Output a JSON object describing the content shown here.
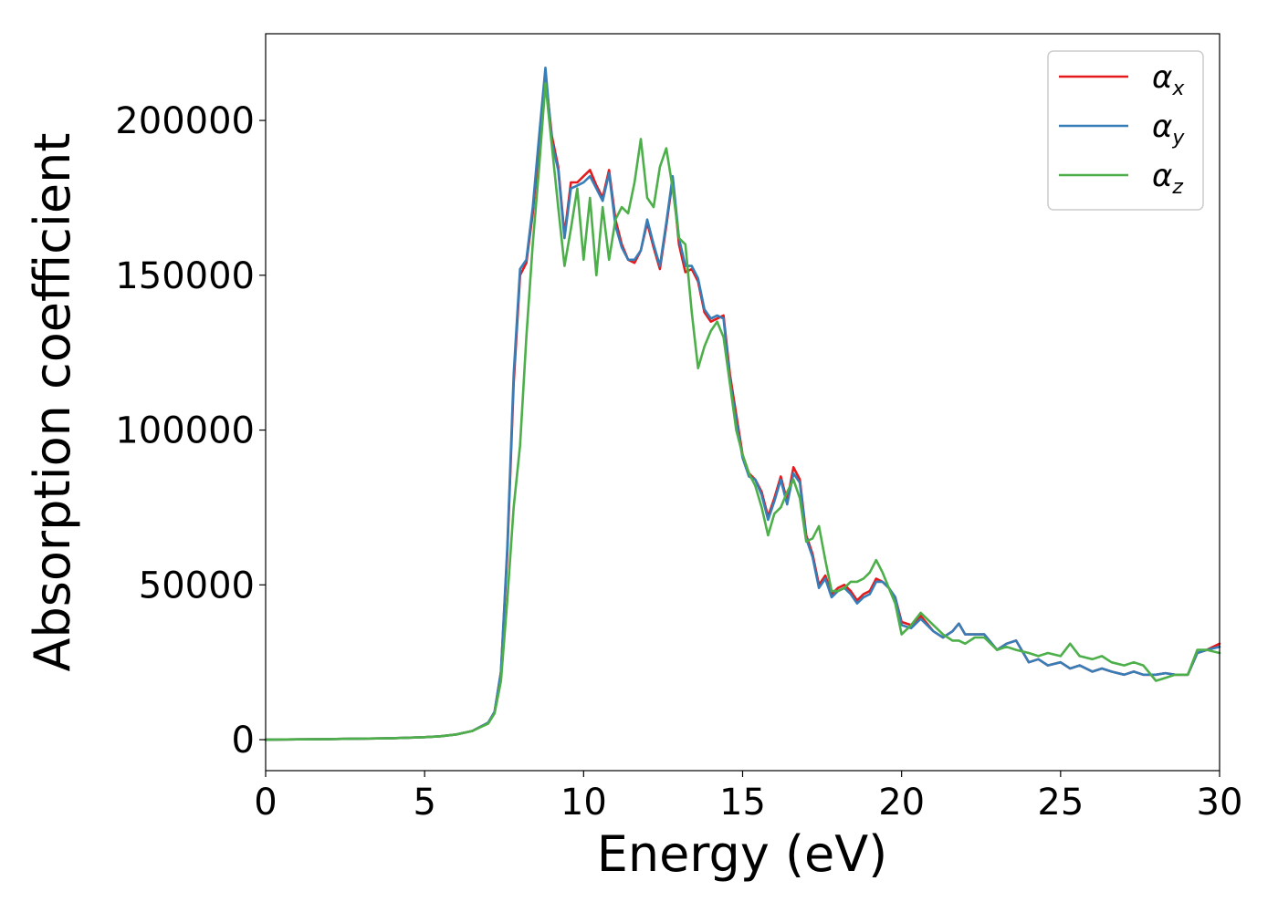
{
  "chart_data": {
    "type": "line",
    "title": "",
    "xlabel": "Energy (eV)",
    "ylabel": "Absorption coefficient",
    "xlim": [
      0,
      30
    ],
    "ylim": [
      -10000,
      228000
    ],
    "xticks": [
      0,
      5,
      10,
      15,
      20,
      25,
      30
    ],
    "xtick_labels": [
      "0",
      "5",
      "10",
      "15",
      "20",
      "25",
      "30"
    ],
    "yticks": [
      0,
      50000,
      100000,
      150000,
      200000
    ],
    "ytick_labels": [
      "0",
      "50000",
      "100000",
      "150000",
      "200000"
    ],
    "grid": false,
    "legend_position": "top-right",
    "series": [
      {
        "name": "αx",
        "legend_symbol": "α",
        "legend_subscript": "x",
        "color": "#e41a1c",
        "x": [
          0,
          1,
          2,
          3,
          4,
          5,
          5.5,
          6,
          6.5,
          7,
          7.2,
          7.4,
          7.6,
          7.8,
          8.0,
          8.2,
          8.4,
          8.6,
          8.8,
          9.0,
          9.2,
          9.4,
          9.6,
          9.8,
          10.0,
          10.2,
          10.4,
          10.6,
          10.8,
          11.0,
          11.2,
          11.4,
          11.6,
          11.8,
          12.0,
          12.2,
          12.4,
          12.6,
          12.8,
          13.0,
          13.2,
          13.4,
          13.6,
          13.8,
          14.0,
          14.2,
          14.4,
          14.6,
          14.8,
          15.0,
          15.2,
          15.4,
          15.6,
          15.8,
          16.0,
          16.2,
          16.4,
          16.6,
          16.8,
          17.0,
          17.2,
          17.4,
          17.6,
          17.8,
          18.0,
          18.2,
          18.4,
          18.6,
          18.8,
          19.0,
          19.2,
          19.4,
          19.6,
          19.8,
          20.0,
          20.3,
          20.6,
          21.0,
          21.3,
          21.6,
          21.8,
          22.0,
          22.3,
          22.6,
          23.0,
          23.3,
          23.6,
          24.0,
          24.3,
          24.6,
          25.0,
          25.3,
          25.6,
          26.0,
          26.3,
          26.6,
          27.0,
          27.3,
          27.6,
          28.0,
          28.3,
          28.6,
          29.0,
          29.3,
          29.6,
          30.0
        ],
        "y": [
          0,
          100,
          200,
          350,
          500,
          800,
          1100,
          1700,
          2800,
          5500,
          9000,
          22000,
          60000,
          115000,
          150000,
          154000,
          170000,
          192000,
          215000,
          195000,
          185000,
          163000,
          180000,
          180000,
          182000,
          184000,
          179000,
          175000,
          184000,
          168000,
          160000,
          155000,
          154000,
          158000,
          167000,
          159000,
          152000,
          166000,
          181000,
          160000,
          151000,
          152000,
          148000,
          138000,
          135000,
          136000,
          137000,
          118000,
          105000,
          92000,
          86000,
          84000,
          80000,
          72000,
          78000,
          85000,
          77000,
          88000,
          84000,
          66000,
          60000,
          50000,
          53000,
          47000,
          49000,
          50000,
          48000,
          45000,
          47000,
          48000,
          52000,
          51000,
          49000,
          46000,
          38000,
          37000,
          40000,
          35000,
          33000,
          35000,
          37500,
          34000,
          34000,
          34000,
          29000,
          31000,
          32000,
          25000,
          26000,
          24000,
          25000,
          23000,
          24000,
          22000,
          23000,
          22000,
          21000,
          22000,
          21000,
          21000,
          21500,
          21000,
          21000,
          28000,
          29000,
          31000
        ]
      },
      {
        "name": "αy",
        "legend_symbol": "α",
        "legend_subscript": "y",
        "color": "#377eb8",
        "x": [
          0,
          1,
          2,
          3,
          4,
          5,
          5.5,
          6,
          6.5,
          7,
          7.2,
          7.4,
          7.6,
          7.8,
          8.0,
          8.2,
          8.4,
          8.6,
          8.8,
          9.0,
          9.2,
          9.4,
          9.6,
          9.8,
          10.0,
          10.2,
          10.4,
          10.6,
          10.8,
          11.0,
          11.2,
          11.4,
          11.6,
          11.8,
          12.0,
          12.2,
          12.4,
          12.6,
          12.8,
          13.0,
          13.2,
          13.4,
          13.6,
          13.8,
          14.0,
          14.2,
          14.4,
          14.6,
          14.8,
          15.0,
          15.2,
          15.4,
          15.6,
          15.8,
          16.0,
          16.2,
          16.4,
          16.6,
          16.8,
          17.0,
          17.2,
          17.4,
          17.6,
          17.8,
          18.0,
          18.2,
          18.4,
          18.6,
          18.8,
          19.0,
          19.2,
          19.4,
          19.6,
          19.8,
          20.0,
          20.3,
          20.6,
          21.0,
          21.3,
          21.6,
          21.8,
          22.0,
          22.3,
          22.6,
          23.0,
          23.3,
          23.6,
          24.0,
          24.3,
          24.6,
          25.0,
          25.3,
          25.6,
          26.0,
          26.3,
          26.6,
          27.0,
          27.3,
          27.6,
          28.0,
          28.3,
          28.6,
          29.0,
          29.3,
          29.6,
          30.0
        ],
        "y": [
          0,
          100,
          200,
          350,
          500,
          800,
          1100,
          1700,
          2800,
          5500,
          9000,
          22000,
          62000,
          118000,
          152000,
          155000,
          172000,
          195000,
          217000,
          193000,
          184000,
          162000,
          178000,
          179000,
          180000,
          182000,
          178000,
          174000,
          183000,
          166000,
          159000,
          155000,
          155000,
          158000,
          168000,
          160000,
          153000,
          167000,
          182000,
          162000,
          153000,
          153000,
          149000,
          139000,
          136000,
          137000,
          136000,
          116000,
          103000,
          91000,
          85000,
          84000,
          79000,
          71000,
          77000,
          84000,
          76000,
          86000,
          83000,
          65000,
          59000,
          49000,
          52000,
          46000,
          48000,
          49000,
          47000,
          44000,
          46000,
          47000,
          51000,
          51000,
          49000,
          46000,
          37000,
          36000,
          39000,
          35000,
          33000,
          35000,
          37500,
          34000,
          34000,
          34000,
          29000,
          31000,
          32000,
          25000,
          26000,
          24000,
          25000,
          23000,
          24000,
          22000,
          23000,
          22000,
          21000,
          22000,
          21000,
          21000,
          21500,
          21000,
          21000,
          28000,
          29000,
          30000
        ]
      },
      {
        "name": "αz",
        "legend_symbol": "α",
        "legend_subscript": "z",
        "color": "#4daf4a",
        "x": [
          0,
          1,
          2,
          3,
          4,
          5,
          5.5,
          6,
          6.5,
          7,
          7.2,
          7.4,
          7.6,
          7.8,
          8.0,
          8.2,
          8.4,
          8.6,
          8.8,
          9.0,
          9.2,
          9.4,
          9.6,
          9.8,
          10.0,
          10.2,
          10.4,
          10.6,
          10.8,
          11.0,
          11.2,
          11.4,
          11.6,
          11.8,
          12.0,
          12.2,
          12.4,
          12.6,
          12.8,
          13.0,
          13.2,
          13.4,
          13.6,
          13.8,
          14.0,
          14.2,
          14.4,
          14.6,
          14.8,
          15.0,
          15.2,
          15.4,
          15.6,
          15.8,
          16.0,
          16.2,
          16.4,
          16.6,
          16.8,
          17.0,
          17.2,
          17.4,
          17.6,
          17.8,
          18.0,
          18.2,
          18.4,
          18.6,
          18.8,
          19.0,
          19.2,
          19.4,
          19.6,
          19.8,
          20.0,
          20.3,
          20.6,
          21.0,
          21.3,
          21.6,
          21.8,
          22.0,
          22.3,
          22.6,
          23.0,
          23.3,
          23.6,
          24.0,
          24.3,
          24.6,
          25.0,
          25.3,
          25.6,
          26.0,
          26.3,
          26.6,
          27.0,
          27.3,
          27.6,
          28.0,
          28.3,
          28.6,
          29.0,
          29.3,
          29.6,
          30.0
        ],
        "y": [
          0,
          100,
          200,
          350,
          500,
          800,
          1100,
          1700,
          2800,
          5200,
          8500,
          19000,
          45000,
          75000,
          95000,
          130000,
          160000,
          185000,
          212000,
          192000,
          172000,
          153000,
          165000,
          178000,
          155000,
          175000,
          150000,
          172000,
          155000,
          168000,
          172000,
          170000,
          180000,
          194000,
          175000,
          172000,
          185000,
          191000,
          178000,
          162000,
          160000,
          138000,
          120000,
          127000,
          132000,
          135000,
          130000,
          115000,
          100000,
          92000,
          86000,
          82000,
          75000,
          66000,
          73000,
          75000,
          80000,
          84000,
          78000,
          64000,
          65000,
          69000,
          58000,
          48000,
          48000,
          49000,
          51000,
          51000,
          52000,
          54000,
          58000,
          54000,
          49000,
          44000,
          34000,
          37000,
          41000,
          37000,
          34000,
          32000,
          32000,
          31000,
          33000,
          33000,
          29000,
          30000,
          29000,
          28000,
          27000,
          28000,
          27000,
          31000,
          27000,
          26000,
          27000,
          25000,
          24000,
          25000,
          24000,
          19000,
          20000,
          21000,
          21000,
          29000,
          29000,
          28000
        ]
      }
    ]
  }
}
